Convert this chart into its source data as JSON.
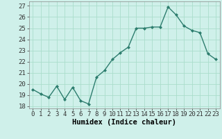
{
  "x": [
    0,
    1,
    2,
    3,
    4,
    5,
    6,
    7,
    8,
    9,
    10,
    11,
    12,
    13,
    14,
    15,
    16,
    17,
    18,
    19,
    20,
    21,
    22,
    23
  ],
  "y": [
    19.5,
    19.1,
    18.8,
    19.8,
    18.6,
    19.7,
    18.5,
    18.2,
    20.6,
    21.2,
    22.2,
    22.8,
    23.3,
    25.0,
    25.0,
    25.1,
    25.1,
    26.9,
    26.2,
    25.2,
    24.8,
    24.6,
    22.7,
    22.2
  ],
  "line_color": "#2d7d6e",
  "markersize": 2.0,
  "linewidth": 1.0,
  "bg_color": "#cff0ea",
  "grid_color": "#aaddcc",
  "xlabel": "Humidex (Indice chaleur)",
  "ylabel_ticks": [
    18,
    19,
    20,
    21,
    22,
    23,
    24,
    25,
    26,
    27
  ],
  "xlim": [
    -0.5,
    23.5
  ],
  "ylim": [
    17.8,
    27.4
  ],
  "xlabel_fontsize": 7.5,
  "tick_fontsize": 6.5
}
